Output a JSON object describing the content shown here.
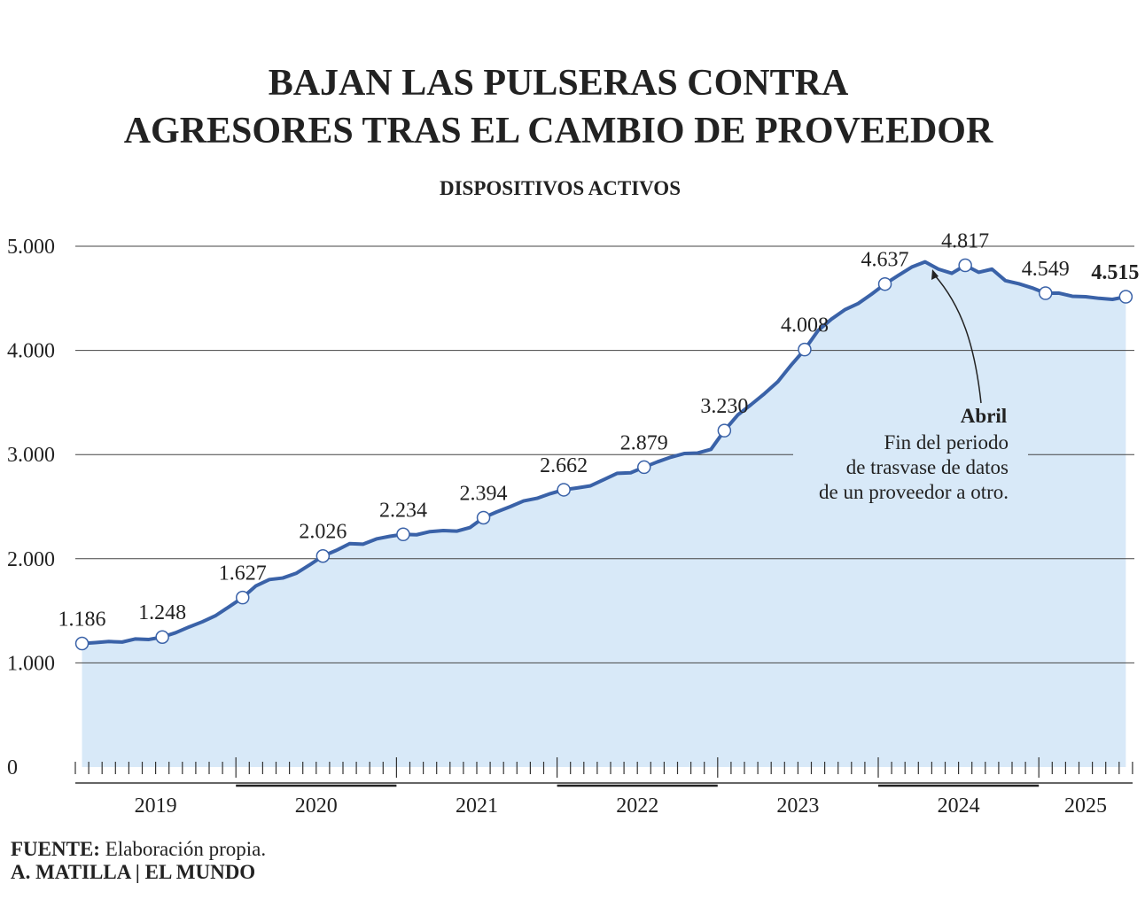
{
  "chart_data": {
    "type": "area-line",
    "title": "BAJAN LAS PULSERAS CONTRA",
    "title_line2": "AGRESORES TRAS EL CAMBIO DE PROVEEDOR",
    "subtitle": "DISPOSITIVOS ACTIVOS",
    "categories": [
      null,
      null,
      null,
      null,
      null,
      null,
      null,
      null,
      null,
      null,
      null,
      null,
      null,
      null,
      null,
      null,
      null,
      null,
      null,
      null,
      null,
      null,
      null,
      null,
      null,
      null,
      null,
      null,
      null,
      null,
      null,
      null,
      null,
      null,
      null,
      null,
      null,
      null,
      null,
      null,
      null,
      null,
      null,
      null,
      null,
      null,
      null,
      null,
      null,
      null,
      null,
      null,
      null,
      null,
      null,
      null,
      null,
      null,
      null,
      null,
      null,
      null,
      null,
      null,
      null,
      null,
      null,
      null,
      null,
      null,
      null,
      null,
      null,
      null,
      null,
      null,
      null,
      null,
      null
    ],
    "year_labels": [
      "2019",
      "2020",
      "2021",
      "2022",
      "2023",
      "2024",
      "2025"
    ],
    "values": [
      1186,
      1195,
      1205,
      1200,
      1230,
      1225,
      1248,
      1290,
      1345,
      1395,
      1455,
      1540,
      1627,
      1740,
      1800,
      1815,
      1860,
      1940,
      2026,
      2080,
      2145,
      2140,
      2190,
      2215,
      2234,
      2230,
      2260,
      2270,
      2265,
      2300,
      2394,
      2450,
      2500,
      2555,
      2580,
      2625,
      2662,
      2680,
      2700,
      2760,
      2820,
      2825,
      2879,
      2930,
      2975,
      3010,
      3015,
      3050,
      3230,
      3380,
      3480,
      3585,
      3700,
      3860,
      4008,
      4190,
      4300,
      4390,
      4450,
      4540,
      4637,
      4720,
      4800,
      4850,
      4780,
      4740,
      4817,
      4750,
      4780,
      4670,
      4640,
      4600,
      4549,
      4550,
      4520,
      4515,
      4500,
      4490,
      4515
    ],
    "value_labels": [
      "1.186",
      null,
      null,
      null,
      null,
      null,
      "1.248",
      null,
      null,
      null,
      null,
      null,
      "1.627",
      null,
      null,
      null,
      null,
      null,
      "2.026",
      null,
      null,
      null,
      null,
      null,
      "2.234",
      null,
      null,
      null,
      null,
      null,
      "2.394",
      null,
      null,
      null,
      null,
      null,
      "2.662",
      null,
      null,
      null,
      null,
      null,
      "2.879",
      null,
      null,
      null,
      null,
      null,
      "3.230",
      null,
      null,
      null,
      null,
      null,
      "4.008",
      null,
      null,
      null,
      null,
      null,
      "4.637",
      null,
      null,
      null,
      null,
      null,
      "4.817",
      null,
      null,
      null,
      null,
      null,
      "4.549",
      null,
      null,
      null,
      null,
      null,
      "4.515"
    ],
    "color": "#3a62a8",
    "area_color": "#d8e9f8",
    "ylim": [
      0,
      5000
    ],
    "yticks": [
      0,
      {
        "value": 1000,
        "label": "1.000"
      },
      {
        "value": 2000,
        "label": "2.000"
      },
      {
        "value": 3000,
        "label": "3.000"
      },
      {
        "value": 4000,
        "label": "4.000"
      },
      {
        "value": 5000,
        "label": "5.000"
      }
    ],
    "grid": true,
    "annotation": {
      "title": "Abril",
      "lines": [
        "Fin del periodo",
        "de trasvase de datos",
        "de un proveedor a otro."
      ]
    },
    "source_label": "FUENTE:",
    "source": " Elaboración propia.",
    "credit": "A. MATILLA | EL MUNDO"
  }
}
